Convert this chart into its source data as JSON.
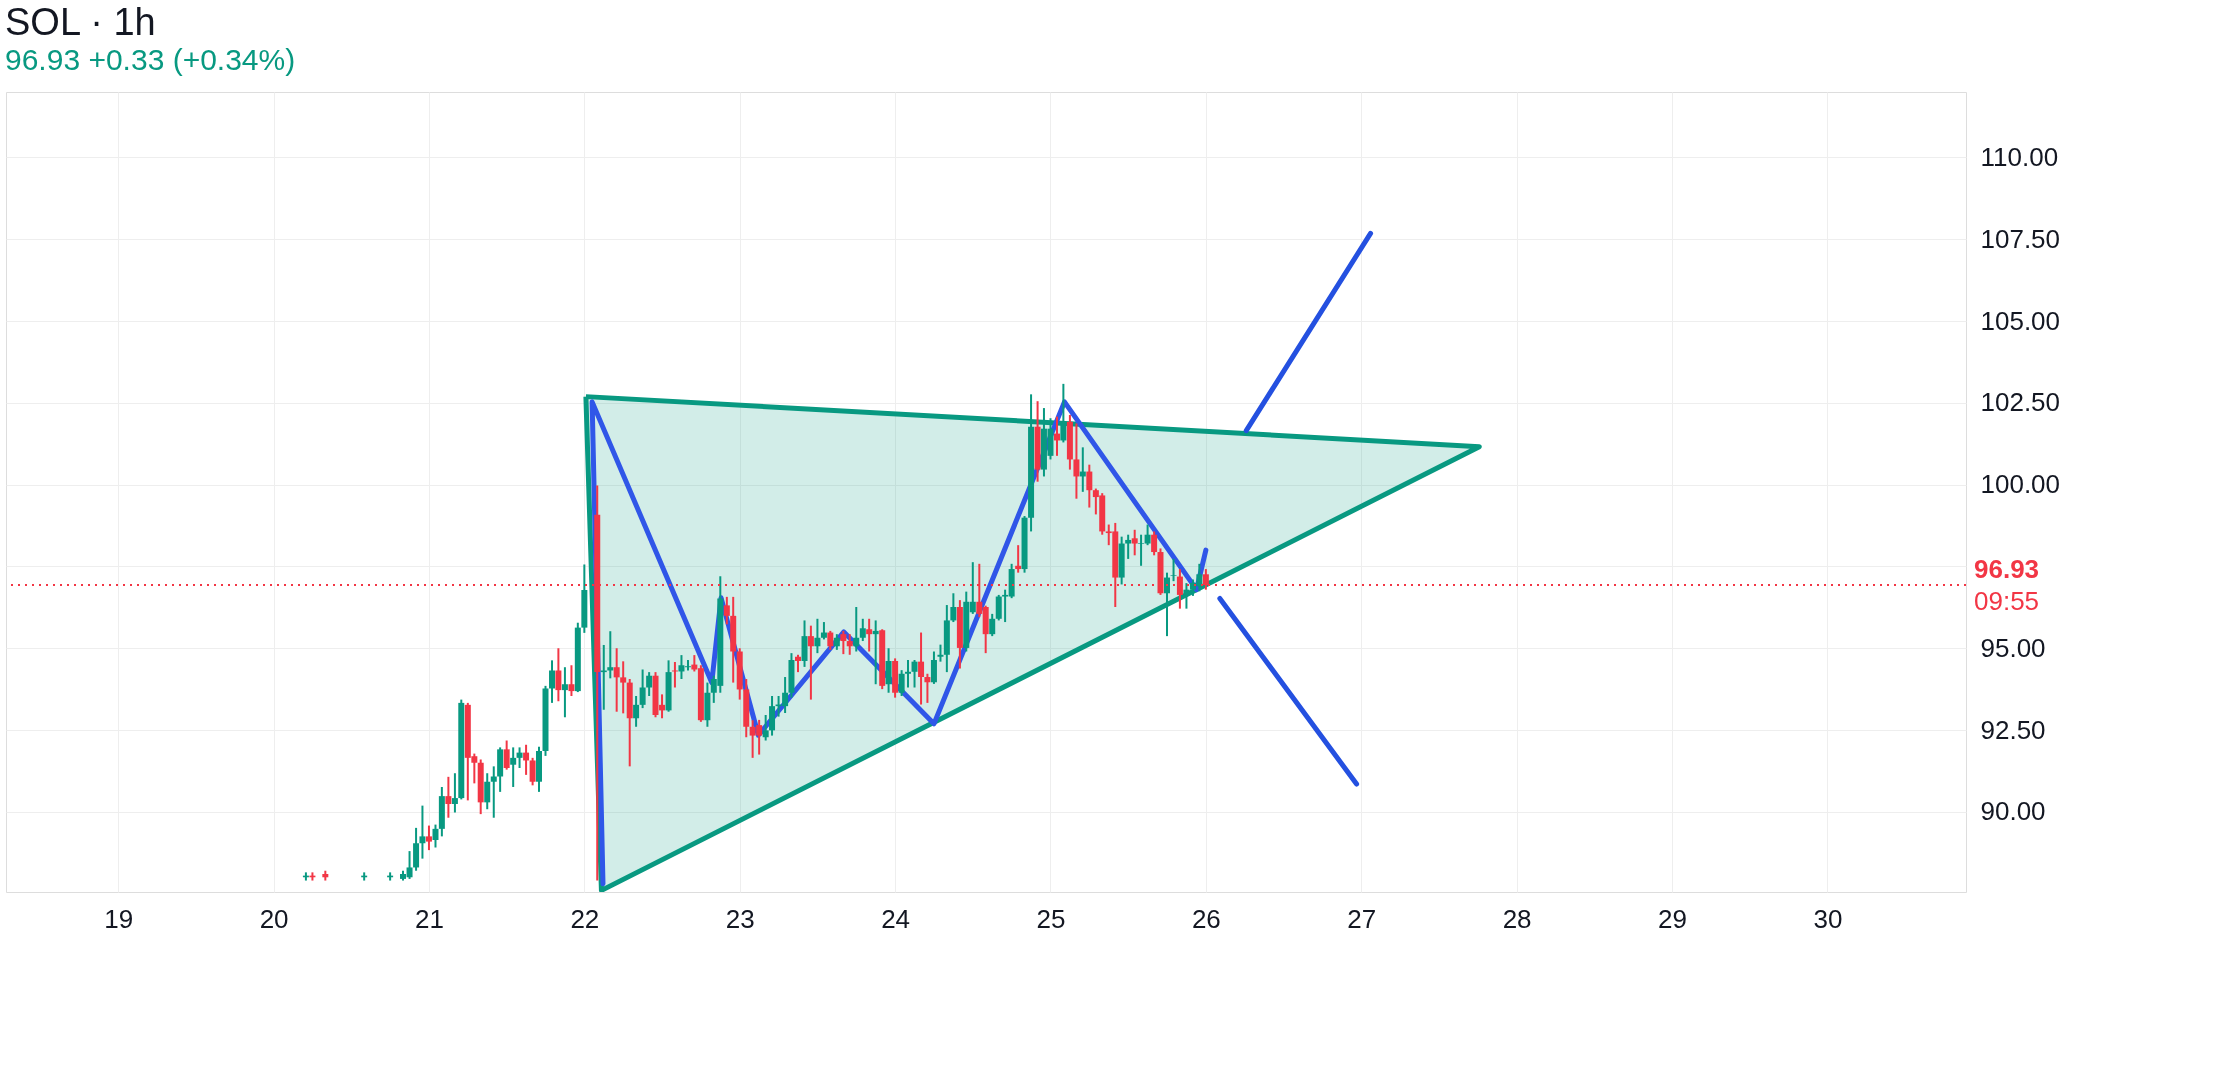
{
  "chart_data": {
    "type": "candlestick",
    "title": "SOL · 1h",
    "subtitle": "96.93  +0.33 (+0.34%)",
    "x": [
      20.208,
      20.25,
      20.333,
      20.583,
      20.75,
      20.833,
      20.875,
      20.917,
      20.958,
      21.0,
      21.042,
      21.083,
      21.125,
      21.167,
      21.208,
      21.25,
      21.292,
      21.333,
      21.375,
      21.417,
      21.458,
      21.5,
      21.542,
      21.583,
      21.625,
      21.667,
      21.708,
      21.75,
      21.792,
      21.833,
      21.875,
      21.917,
      21.958,
      22.0,
      22.083,
      22.125,
      22.167,
      22.208,
      22.25,
      22.292,
      22.333,
      22.375,
      22.417,
      22.458,
      22.5,
      22.542,
      22.583,
      22.625,
      22.667,
      22.708,
      22.75,
      22.792,
      22.833,
      22.875,
      22.917,
      22.958,
      23.0,
      23.042,
      23.083,
      23.125,
      23.167,
      23.208,
      23.25,
      23.292,
      23.333,
      23.375,
      23.417,
      23.458,
      23.5,
      23.542,
      23.583,
      23.625,
      23.667,
      23.708,
      23.75,
      23.792,
      23.833,
      23.875,
      23.917,
      23.958,
      24.0,
      24.042,
      24.083,
      24.125,
      24.167,
      24.208,
      24.25,
      24.292,
      24.333,
      24.375,
      24.417,
      24.458,
      24.5,
      24.542,
      24.583,
      24.625,
      24.667,
      24.708,
      24.75,
      24.792,
      24.833,
      24.875,
      24.917,
      24.958,
      25.0,
      25.042,
      25.083,
      25.125,
      25.167,
      25.208,
      25.25,
      25.292,
      25.333,
      25.375,
      25.417,
      25.458,
      25.5,
      25.542,
      25.583,
      25.625,
      25.667,
      25.708,
      25.75,
      25.792,
      25.833,
      25.875,
      25.917,
      25.958,
      26.0
    ],
    "ohlc": [
      [
        88.0,
        88.15,
        87.9,
        88.05
      ],
      [
        88.05,
        88.15,
        87.9,
        88.0
      ],
      [
        88.1,
        88.2,
        87.9,
        88.0
      ],
      [
        88.0,
        88.15,
        87.9,
        88.05
      ],
      [
        88.0,
        88.15,
        87.9,
        88.05
      ],
      [
        87.95,
        88.2,
        87.9,
        88.1
      ],
      [
        88.0,
        88.8,
        87.95,
        88.3
      ],
      [
        88.3,
        89.51,
        88.2,
        89.04
      ],
      [
        89.04,
        90.19,
        88.57,
        89.25
      ],
      [
        89.25,
        89.58,
        88.83,
        89.09
      ],
      [
        89.14,
        89.61,
        88.91,
        89.48
      ],
      [
        89.48,
        90.76,
        89.25,
        90.48
      ],
      [
        90.48,
        91.07,
        89.82,
        90.24
      ],
      [
        90.24,
        91.18,
        89.98,
        90.42
      ],
      [
        90.42,
        93.43,
        90.38,
        93.33
      ],
      [
        93.27,
        93.33,
        90.35,
        91.65
      ],
      [
        91.7,
        91.78,
        90.87,
        91.5
      ],
      [
        91.5,
        91.6,
        89.93,
        90.29
      ],
      [
        90.29,
        91.18,
        90.08,
        90.92
      ],
      [
        90.92,
        91.39,
        89.82,
        91.08
      ],
      [
        91.08,
        91.97,
        90.61,
        91.91
      ],
      [
        91.91,
        92.18,
        91.29,
        91.34
      ],
      [
        91.44,
        91.97,
        90.76,
        91.65
      ],
      [
        91.65,
        91.97,
        91.34,
        91.81
      ],
      [
        91.81,
        92.05,
        91.13,
        91.57
      ],
      [
        91.57,
        91.65,
        90.81,
        90.92
      ],
      [
        90.92,
        91.99,
        90.61,
        91.86
      ],
      [
        91.86,
        93.85,
        91.71,
        93.77
      ],
      [
        93.77,
        94.63,
        93.33,
        94.32
      ],
      [
        94.32,
        95.0,
        93.38,
        93.72
      ],
      [
        93.72,
        94.42,
        92.89,
        93.9
      ],
      [
        93.9,
        94.48,
        93.54,
        93.69
      ],
      [
        93.69,
        95.78,
        93.66,
        95.63
      ],
      [
        95.63,
        97.56,
        95.47,
        96.78
      ],
      [
        99.08,
        99.97,
        87.9,
        94.27
      ],
      [
        94.27,
        95.1,
        93.12,
        94.32
      ],
      [
        94.32,
        95.52,
        94.08,
        94.42
      ],
      [
        94.42,
        95.0,
        93.06,
        94.11
      ],
      [
        94.11,
        94.6,
        93.01,
        93.95
      ],
      [
        93.95,
        94.06,
        91.39,
        92.86
      ],
      [
        92.86,
        93.54,
        92.6,
        93.27
      ],
      [
        93.27,
        94.35,
        93.17,
        93.8
      ],
      [
        93.8,
        94.27,
        93.54,
        94.16
      ],
      [
        94.16,
        94.27,
        92.89,
        92.96
      ],
      [
        93.27,
        93.59,
        92.86,
        93.1
      ],
      [
        93.1,
        94.63,
        93.06,
        94.27
      ],
      [
        94.32,
        94.58,
        93.8,
        94.29
      ],
      [
        94.29,
        94.79,
        94.06,
        94.48
      ],
      [
        94.42,
        94.64,
        94.32,
        94.45
      ],
      [
        94.5,
        94.79,
        94.29,
        94.35
      ],
      [
        94.39,
        94.48,
        92.75,
        92.8
      ],
      [
        92.8,
        93.95,
        92.6,
        93.64
      ],
      [
        93.64,
        94.16,
        93.33,
        94.06
      ],
      [
        93.85,
        97.2,
        93.64,
        96.52
      ],
      [
        96.31,
        96.57,
        95.73,
        95.99
      ],
      [
        95.99,
        96.57,
        93.95,
        94.9
      ],
      [
        94.9,
        95.0,
        93.43,
        93.74
      ],
      [
        93.74,
        94.06,
        92.28,
        92.6
      ],
      [
        92.6,
        92.8,
        91.65,
        92.33
      ],
      [
        92.65,
        92.81,
        91.75,
        92.33
      ],
      [
        92.28,
        92.96,
        92.18,
        92.49
      ],
      [
        92.49,
        93.54,
        92.33,
        93.23
      ],
      [
        93.23,
        93.54,
        92.91,
        93.28
      ],
      [
        93.23,
        94.12,
        93.02,
        93.64
      ],
      [
        93.64,
        94.85,
        93.49,
        94.64
      ],
      [
        94.74,
        94.8,
        94.27,
        94.61
      ],
      [
        94.61,
        95.85,
        94.43,
        95.37
      ],
      [
        95.37,
        95.69,
        93.43,
        95.06
      ],
      [
        95.06,
        95.9,
        94.85,
        95.32
      ],
      [
        95.32,
        95.8,
        95.27,
        95.48
      ],
      [
        95.48,
        95.53,
        94.95,
        95.06
      ],
      [
        95.06,
        95.43,
        94.95,
        95.32
      ],
      [
        95.43,
        95.53,
        94.82,
        95.22
      ],
      [
        95.22,
        95.43,
        94.8,
        95.06
      ],
      [
        95.06,
        96.26,
        94.9,
        95.32
      ],
      [
        95.32,
        95.9,
        95.22,
        95.61
      ],
      [
        95.58,
        95.9,
        94.9,
        95.43
      ],
      [
        95.43,
        95.85,
        93.9,
        95.53
      ],
      [
        95.55,
        95.58,
        93.75,
        93.85
      ],
      [
        93.9,
        95.0,
        93.64,
        94.61
      ],
      [
        94.61,
        94.69,
        93.49,
        93.64
      ],
      [
        93.64,
        94.33,
        93.54,
        94.22
      ],
      [
        94.22,
        94.64,
        93.8,
        94.28
      ],
      [
        94.28,
        94.64,
        93.8,
        94.59
      ],
      [
        94.59,
        95.48,
        93.28,
        94.12
      ],
      [
        94.12,
        94.22,
        93.33,
        93.96
      ],
      [
        93.96,
        94.9,
        93.91,
        94.64
      ],
      [
        94.74,
        95.11,
        94.59,
        94.8
      ],
      [
        94.8,
        96.32,
        94.27,
        95.85
      ],
      [
        95.85,
        96.68,
        95.8,
        96.26
      ],
      [
        96.26,
        96.47,
        94.38,
        95.01
      ],
      [
        95.01,
        96.73,
        94.9,
        96.42
      ],
      [
        96.1,
        97.63,
        96.05,
        96.42
      ],
      [
        96.42,
        97.58,
        95.95,
        96.05
      ],
      [
        96.26,
        96.3,
        94.85,
        95.43
      ],
      [
        95.43,
        96.05,
        95.37,
        95.9
      ],
      [
        95.9,
        96.63,
        95.85,
        96.58
      ],
      [
        96.58,
        96.79,
        95.8,
        96.63
      ],
      [
        96.58,
        97.58,
        96.53,
        97.42
      ],
      [
        97.52,
        98.15,
        97.31,
        97.42
      ],
      [
        97.42,
        99.04,
        97.31,
        98.99
      ],
      [
        98.99,
        102.76,
        98.57,
        101.77
      ],
      [
        101.77,
        102.55,
        100.09,
        100.46
      ],
      [
        100.46,
        102.34,
        100.25,
        101.71
      ],
      [
        100.88,
        102.03,
        100.77,
        101.71
      ],
      [
        101.56,
        102.08,
        100.88,
        101.35
      ],
      [
        101.35,
        103.08,
        101.29,
        101.92
      ],
      [
        101.92,
        102.13,
        100.46,
        100.77
      ],
      [
        100.77,
        101.87,
        99.57,
        100.25
      ],
      [
        100.25,
        101.14,
        99.78,
        100.4
      ],
      [
        100.4,
        100.61,
        99.3,
        99.83
      ],
      [
        99.83,
        99.88,
        99.09,
        99.62
      ],
      [
        99.67,
        99.74,
        98.47,
        98.57
      ],
      [
        98.57,
        98.78,
        98.15,
        98.52
      ],
      [
        98.57,
        98.83,
        96.26,
        97.16
      ],
      [
        97.16,
        98.41,
        96.95,
        98.2
      ],
      [
        98.2,
        98.47,
        97.73,
        98.31
      ],
      [
        98.36,
        98.62,
        97.84,
        98.2
      ],
      [
        98.19,
        98.47,
        97.52,
        98.21
      ],
      [
        98.2,
        98.78,
        98.15,
        98.47
      ],
      [
        98.47,
        98.57,
        97.84,
        97.94
      ],
      [
        97.94,
        98.05,
        96.63,
        96.68
      ],
      [
        96.68,
        97.31,
        95.37,
        97.16
      ],
      [
        97.21,
        97.73,
        97.05,
        97.23
      ],
      [
        97.19,
        97.42,
        96.21,
        96.63
      ],
      [
        96.63,
        96.99,
        96.21,
        96.79
      ],
      [
        96.79,
        97.1,
        96.6,
        97.0
      ],
      [
        96.89,
        97.58,
        96.74,
        97.26
      ],
      [
        97.26,
        97.42,
        96.79,
        96.93
      ]
    ],
    "colors": [
      "#089981",
      "#f23645",
      "#f23645",
      "#089981",
      "#089981",
      "#089981",
      "#089981",
      "#089981",
      "#089981",
      "#f23645",
      "#089981",
      "#089981",
      "#f23645",
      "#089981",
      "#089981",
      "#f23645",
      "#f23645",
      "#f23645",
      "#089981",
      "#089981",
      "#089981",
      "#f23645",
      "#089981",
      "#089981",
      "#f23645",
      "#f23645",
      "#089981",
      "#089981",
      "#089981",
      "#f23645",
      "#089981",
      "#f23645",
      "#089981",
      "#089981",
      "#f23645",
      "#089981",
      "#089981",
      "#f23645",
      "#f23645",
      "#f23645",
      "#089981",
      "#089981",
      "#089981",
      "#f23645",
      "#f23645",
      "#089981",
      "#f23645",
      "#089981",
      "#089981",
      "#f23645",
      "#f23645",
      "#089981",
      "#089981",
      "#089981",
      "#f23645",
      "#f23645",
      "#f23645",
      "#f23645",
      "#f23645",
      "#f23645",
      "#089981",
      "#089981",
      "#089981",
      "#089981",
      "#089981",
      "#f23645",
      "#089981",
      "#f23645",
      "#089981",
      "#089981",
      "#f23645",
      "#089981",
      "#f23645",
      "#f23645",
      "#089981",
      "#089981",
      "#f23645",
      "#089981",
      "#f23645",
      "#089981",
      "#f23645",
      "#089981",
      "#089981",
      "#089981",
      "#f23645",
      "#f23645",
      "#089981",
      "#089981",
      "#089981",
      "#089981",
      "#f23645",
      "#089981",
      "#089981",
      "#f23645",
      "#f23645",
      "#089981",
      "#089981",
      "#089981",
      "#089981",
      "#f23645",
      "#089981",
      "#089981",
      "#f23645",
      "#089981",
      "#089981",
      "#f23645",
      "#089981",
      "#f23645",
      "#f23645",
      "#089981",
      "#f23645",
      "#f23645",
      "#f23645",
      "#f23645",
      "#f23645",
      "#089981",
      "#089981",
      "#f23645",
      "#089981",
      "#089981",
      "#f23645",
      "#f23645",
      "#089981",
      "#089981",
      "#f23645",
      "#089981",
      "#089981",
      "#089981",
      "#f23645"
    ],
    "series": [
      {
        "type": "area",
        "color": "#089981",
        "x": [
          22.01,
          27.76,
          22.11,
          22.01
        ],
        "values": [
          102.69,
          101.16,
          87.6,
          102.69
        ]
      },
      {
        "type": "line",
        "color": "#3056e8",
        "x": [
          22.12,
          22.05,
          22.82,
          22.88,
          23.12,
          23.67,
          24.25,
          25.09,
          25.94,
          26.0
        ],
        "values": [
          87.8,
          102.53,
          93.95,
          96.54,
          92.34,
          95.5,
          92.69,
          102.53,
          96.79,
          98.0
        ]
      },
      {
        "type": "line",
        "color": "#2450e0",
        "x": [
          26.26,
          27.06
        ],
        "values": [
          101.65,
          107.68
        ]
      },
      {
        "type": "line",
        "color": "#2450e0",
        "x": [
          26.09,
          26.97
        ],
        "values": [
          96.52,
          90.85
        ]
      }
    ],
    "ref_lines": [
      {
        "axis": "y",
        "value": 96.93,
        "label": "96.93",
        "color": "#f23645",
        "line_style": "dotted"
      }
    ],
    "annotations": [
      "09:55"
    ],
    "xlim": [
      18.31,
      30.86
    ],
    "xticks": [
      19,
      20,
      21,
      22,
      23,
      24,
      25,
      26,
      27,
      28,
      29,
      30
    ],
    "ylim": [
      87.55,
      112
    ],
    "yticks": [
      {
        "value": 90,
        "label": "90.00"
      },
      {
        "value": 92.5,
        "label": "92.50"
      },
      {
        "value": 95,
        "label": "95.00"
      },
      {
        "value": 97.5,
        "label": null
      },
      {
        "value": 100,
        "label": "100.00"
      },
      {
        "value": 102.5,
        "label": "102.50"
      },
      {
        "value": 105,
        "label": "105.00"
      },
      {
        "value": 107.5,
        "label": "107.50"
      },
      {
        "value": 110,
        "label": "110.00"
      }
    ],
    "grid": true
  }
}
